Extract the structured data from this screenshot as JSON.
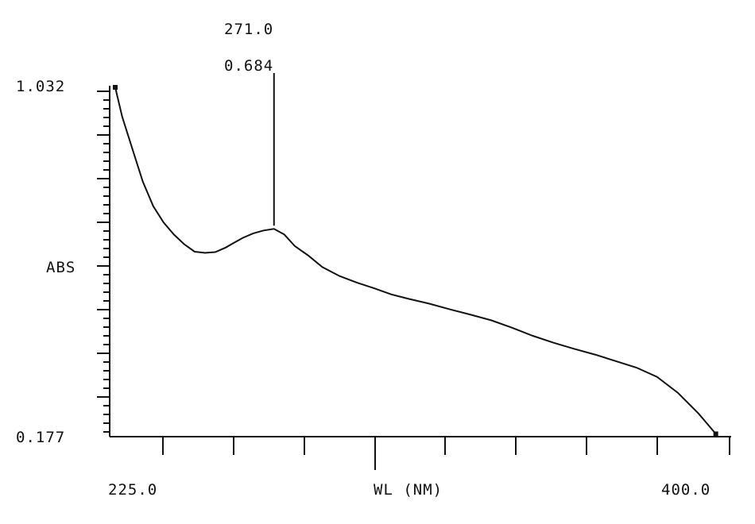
{
  "chart_data": {
    "type": "line",
    "xlabel": "WL (NM)",
    "ylabel": "ABS",
    "x_range_labels": [
      "225.0",
      "400.0"
    ],
    "y_range_labels": [
      "0.177",
      "1.032"
    ],
    "xlim": [
      225.0,
      400.0
    ],
    "ylim": [
      0.177,
      1.032
    ],
    "grid": false,
    "peak": {
      "x_label": "271.0",
      "y_label": "0.684",
      "x": 271.0,
      "y": 0.684
    },
    "series": [
      {
        "x": [
          225,
          227,
          230,
          233,
          236,
          239,
          242,
          245,
          248,
          251,
          254,
          257,
          259,
          262,
          265,
          268,
          271,
          274,
          277,
          281,
          285,
          290,
          295,
          300,
          305,
          310,
          316,
          322,
          328,
          334,
          340,
          346,
          352,
          358,
          364,
          370,
          376,
          382,
          388,
          394,
          399
        ],
        "y": [
          1.032,
          0.96,
          0.88,
          0.8,
          0.74,
          0.7,
          0.67,
          0.646,
          0.628,
          0.625,
          0.627,
          0.638,
          0.648,
          0.662,
          0.673,
          0.68,
          0.684,
          0.67,
          0.642,
          0.618,
          0.59,
          0.568,
          0.552,
          0.538,
          0.523,
          0.512,
          0.5,
          0.486,
          0.473,
          0.459,
          0.441,
          0.421,
          0.404,
          0.389,
          0.375,
          0.359,
          0.343,
          0.32,
          0.281,
          0.23,
          0.18
        ]
      }
    ]
  }
}
